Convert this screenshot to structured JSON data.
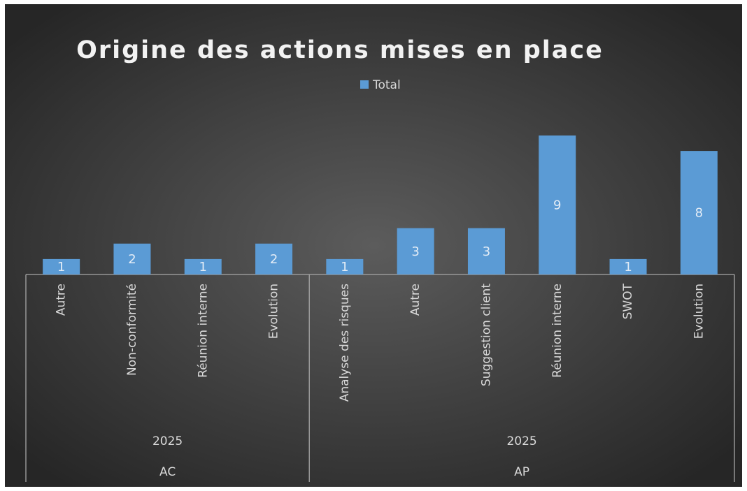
{
  "chart_data": {
    "type": "bar",
    "title": "Origine des actions mises en place",
    "series": [
      {
        "name": "Total",
        "color": "#5b9bd5"
      }
    ],
    "groups": [
      {
        "name": "AC",
        "year": "2025",
        "categories": [
          "Autre",
          "Non-conformité",
          "Réunion interne",
          "Evolution"
        ],
        "values": [
          1,
          2,
          1,
          2
        ]
      },
      {
        "name": "AP",
        "year": "2025",
        "categories": [
          "Analyse des risques",
          "Autre",
          "Suggestion client",
          "Réunion interne",
          "SWOT",
          "Evolution"
        ],
        "values": [
          1,
          3,
          3,
          9,
          1,
          8
        ]
      }
    ]
  }
}
